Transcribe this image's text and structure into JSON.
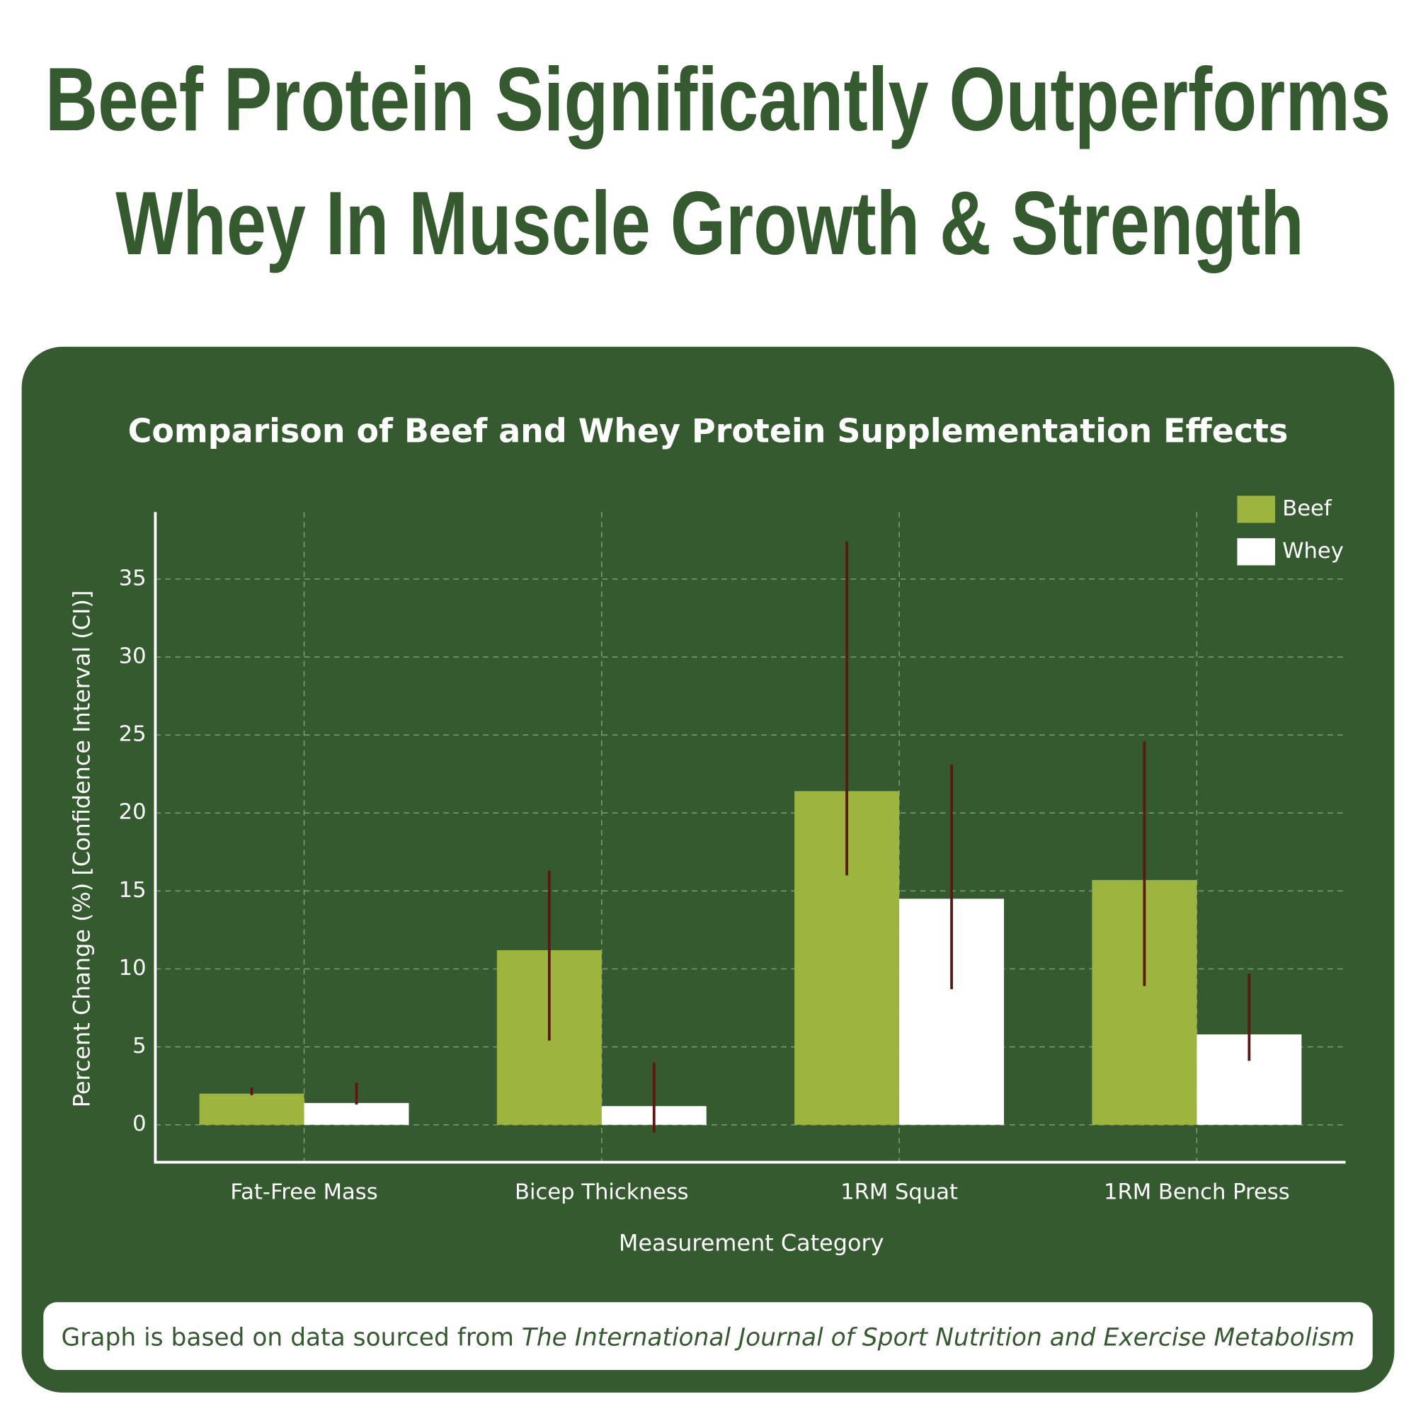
{
  "headline": [
    "Beef Protein Significantly Outperforms",
    "Whey In Muscle Growth & Strength"
  ],
  "chart_data": {
    "type": "bar",
    "title": "Comparison of Beef and Whey Protein Supplementation Effects",
    "x_label": "Measurement Category",
    "y_label": "Percent Change (%) [Confidence Interval (CI)]",
    "categories": [
      "Fat-Free Mass",
      "Bicep Thickness",
      "1RM Squat",
      "1RM Bench Press"
    ],
    "series": [
      {
        "name": "Beef",
        "color": "#9db53e",
        "values": [
          2.0,
          11.2,
          21.4,
          15.7
        ],
        "ci": [
          [
            1.9,
            2.4
          ],
          [
            5.4,
            16.3
          ],
          [
            16.0,
            37.4
          ],
          [
            8.9,
            24.6
          ]
        ]
      },
      {
        "name": "Whey",
        "color": "#ffffff",
        "values": [
          1.4,
          1.2,
          14.5,
          5.8
        ],
        "ci": [
          [
            1.3,
            2.7
          ],
          [
            -0.5,
            4.0
          ],
          [
            8.7,
            23.1
          ],
          [
            4.1,
            9.7
          ]
        ]
      }
    ],
    "error_color": "#5a1a12",
    "ylim": [
      -2.4,
      39.3
    ],
    "yticks": [
      0,
      5,
      10,
      15,
      20,
      25,
      30,
      35
    ],
    "grid": true,
    "legend": "top-right"
  },
  "footnote": {
    "text": "Graph is based on data sourced from",
    "source": "The International Journal of Sport Nutrition and Exercise Metabolism"
  }
}
